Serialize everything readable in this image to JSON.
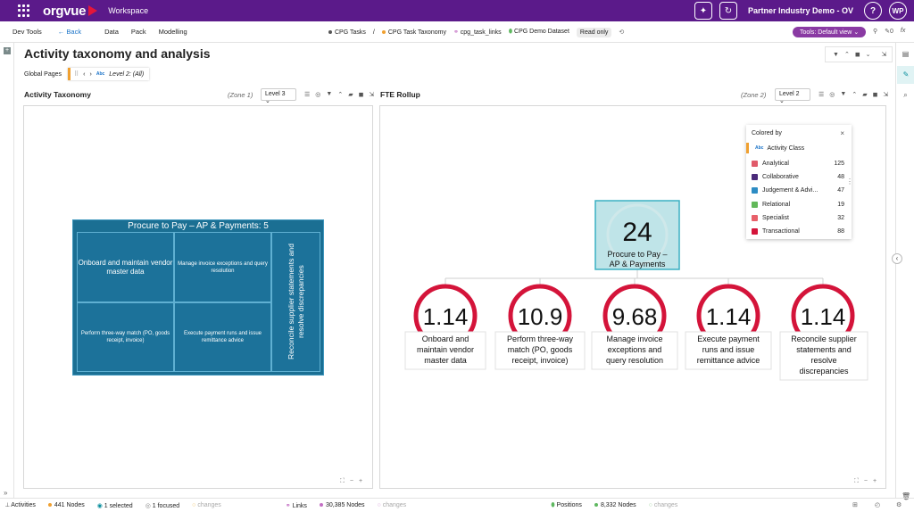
{
  "app": {
    "brand": "orgvue",
    "workspace": "Workspace",
    "partner": "Partner Industry Demo - OV",
    "help_label": "?",
    "user_initials": "WP"
  },
  "subnav": {
    "dev_tools": "Dev Tools",
    "back": "Back",
    "data": "Data",
    "pack": "Pack",
    "modelling": "Modelling",
    "breadcrumbs": [
      {
        "label": "CPG Tasks",
        "color": "#555555"
      },
      {
        "label": "CPG Task Taxonomy",
        "color": "#f0a030"
      },
      {
        "label": "cpg_task_links",
        "color": "#c36fc4"
      },
      {
        "label": "CPG Demo Dataset",
        "color": "#5fb860"
      }
    ],
    "separator": "/",
    "read_only": "Read only",
    "tools_view": "Tools: Default view",
    "count_badge": "0",
    "fx": "fx"
  },
  "page": {
    "title": "Activity taxonomy and analysis",
    "global_pages": "Global Pages",
    "filter_label": "Level 2: (All)"
  },
  "left_panel": {
    "title": "Activity Taxonomy",
    "zone": "(Zone 1)",
    "level": "Level 3",
    "treemap": {
      "title": "Procure to Pay – AP & Payments: 5",
      "cells": [
        "Onboard and maintain vendor master data",
        "Manage invoice exceptions and query resolution",
        "Perform three-way match (PO, goods receipt, invoice)",
        "Execute payment runs and issue remittance advice",
        "Reconcile supplier statements and resolve discrepancies"
      ]
    }
  },
  "right_panel": {
    "title": "FTE Rollup",
    "zone": "(Zone 2)",
    "level": "Level 2",
    "root": {
      "value": "24",
      "label": "Procure to Pay – AP & Payments"
    },
    "children": [
      {
        "value": "1.14",
        "label": "Onboard and maintain vendor master data"
      },
      {
        "value": "10.9",
        "label": "Perform three-way match (PO, goods receipt, invoice)"
      },
      {
        "value": "9.68",
        "label": "Manage invoice exceptions and query resolution"
      },
      {
        "value": "1.14",
        "label": "Execute payment runs and issue remittance advice"
      },
      {
        "value": "1.14",
        "label": "Reconcile supplier statements and resolve discrepancies"
      }
    ]
  },
  "legend": {
    "title": "Colored by",
    "field": "Activity Class",
    "close": "×",
    "items": [
      {
        "label": "Analytical",
        "count": "125",
        "color": "#e05a6a"
      },
      {
        "label": "Collaborative",
        "count": "48",
        "color": "#4b2a7a"
      },
      {
        "label": "Judgement & Advi...",
        "count": "47",
        "color": "#2d8cc4"
      },
      {
        "label": "Relational",
        "count": "19",
        "color": "#62b85a"
      },
      {
        "label": "Specialist",
        "count": "32",
        "color": "#e8606a"
      },
      {
        "label": "Transactional",
        "count": "88",
        "color": "#d4143a"
      }
    ]
  },
  "statusbar": {
    "activities": "Activities",
    "activities_nodes": "441 Nodes",
    "selected": "1 selected",
    "focused": "1 focused",
    "changes": "changes",
    "links": "Links",
    "links_nodes": "30,385 Nodes",
    "positions": "Positions",
    "positions_nodes": "8,332 Nodes"
  }
}
